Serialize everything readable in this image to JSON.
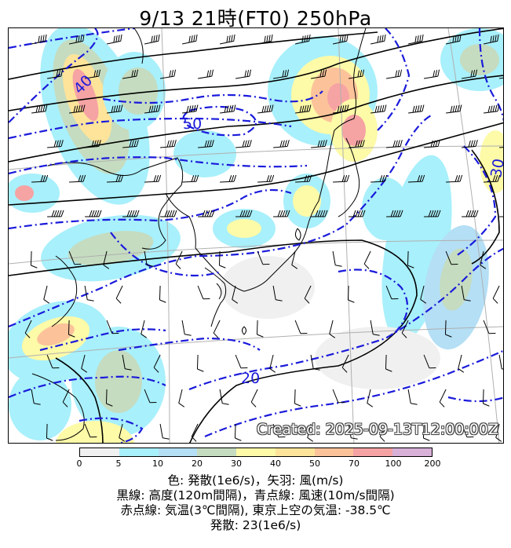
{
  "title": "9/13  21時(FT0)     250hPa",
  "created": "Created: 2025-09-13T12:00:00Z",
  "map": {
    "colors": {
      "divergence_levels": [
        "#f0f0f0",
        "#a8f0fb",
        "#b4dff5",
        "#c5dcc0",
        "#fdfaa8",
        "#fde49a",
        "#fcc39a",
        "#f6a3a4",
        "#d8b0d8"
      ],
      "height_contour": "#000000",
      "wind_speed_contour": "#1a1adb",
      "coast": "#000000",
      "grid": "#b0b0b0"
    },
    "contour_labels": [
      {
        "text": "40",
        "name": "wind-speed-label-40"
      },
      {
        "text": "50",
        "name": "wind-speed-label-50"
      },
      {
        "text": "30",
        "name": "wind-speed-label-30"
      },
      {
        "text": "20",
        "name": "wind-speed-label-20"
      }
    ]
  },
  "colorbar": {
    "ticks": [
      "0",
      "5",
      "10",
      "20",
      "30",
      "40",
      "50",
      "70",
      "100",
      "200"
    ]
  },
  "legend": {
    "line1": "色: 発散(1e6/s)，矢羽: 風(m/s)",
    "line2": "黒線: 高度(120m間隔)，青点線: 風速(10m/s間隔)",
    "line3": "赤点線: 気温(3℃間隔), 東京上空の気温: -38.5℃",
    "line4": "発散: 23(1e6/s)"
  }
}
